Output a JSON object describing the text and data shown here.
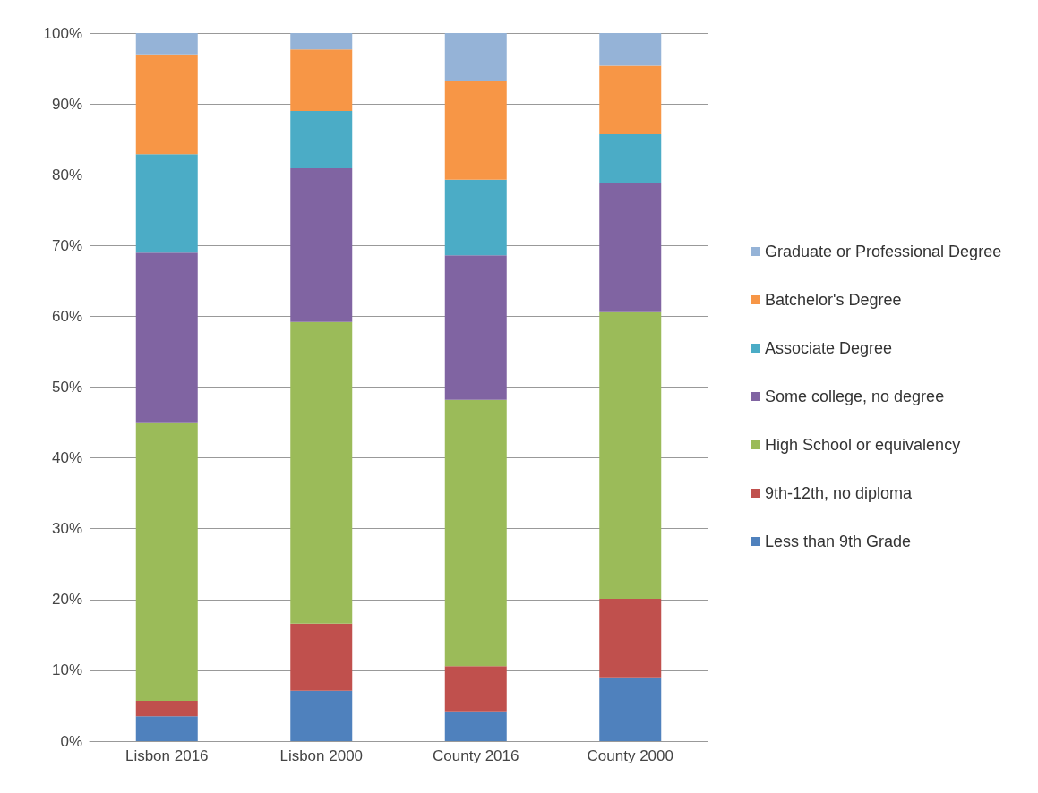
{
  "chart_data": {
    "type": "bar",
    "stacked": true,
    "categories": [
      "Lisbon 2016",
      "Lisbon 2000",
      "County 2016",
      "County 2000"
    ],
    "series": [
      {
        "name": "Less than 9th Grade",
        "color": "#4f81bd",
        "values": [
          3.5,
          7.1,
          4.2,
          9.0
        ]
      },
      {
        "name": "9th-12th, no diploma",
        "color": "#c0504d",
        "values": [
          2.2,
          9.5,
          6.4,
          11.1
        ]
      },
      {
        "name": "High School or equivalency",
        "color": "#9bbb59",
        "values": [
          39.2,
          42.6,
          37.6,
          40.5
        ]
      },
      {
        "name": "Some college, no degree",
        "color": "#8064a2",
        "values": [
          24.1,
          21.7,
          20.4,
          18.2
        ]
      },
      {
        "name": "Associate Degree",
        "color": "#4bacc6",
        "values": [
          13.9,
          8.1,
          10.7,
          6.9
        ]
      },
      {
        "name": "Batchelor's Degree",
        "color": "#f79646",
        "values": [
          14.1,
          8.7,
          13.9,
          9.7
        ]
      },
      {
        "name": "Graduate or Professional Degree",
        "color": "#95b3d7",
        "values": [
          3.0,
          2.3,
          6.8,
          4.6
        ]
      }
    ],
    "ylim": [
      0,
      100
    ],
    "yticks": [
      {
        "value": 0,
        "label": "0%"
      },
      {
        "value": 10,
        "label": "10%"
      },
      {
        "value": 20,
        "label": "20%"
      },
      {
        "value": 30,
        "label": "30%"
      },
      {
        "value": 40,
        "label": "40%"
      },
      {
        "value": 50,
        "label": "50%"
      },
      {
        "value": 60,
        "label": "60%"
      },
      {
        "value": 70,
        "label": "70%"
      },
      {
        "value": 80,
        "label": "80%"
      },
      {
        "value": 90,
        "label": "90%"
      },
      {
        "value": 100,
        "label": "100%"
      }
    ],
    "grid": "y",
    "legend": "right"
  }
}
